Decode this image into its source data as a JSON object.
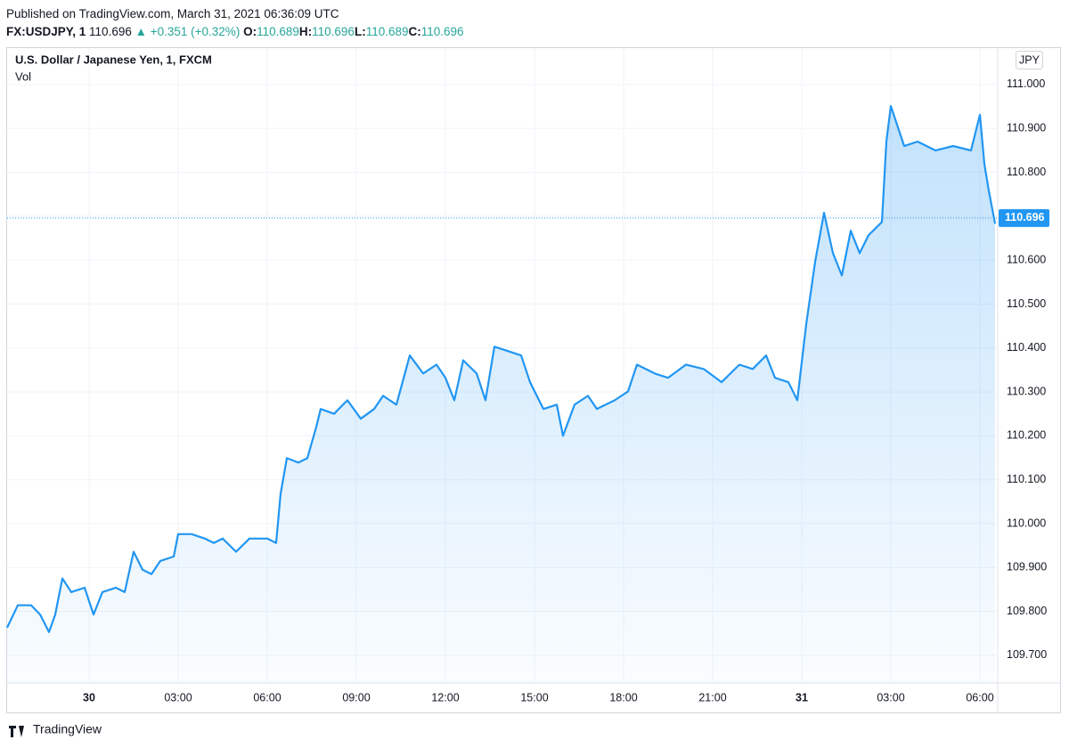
{
  "header": {
    "published": "Published on TradingView.com, March 31, 2021 06:36:09 UTC",
    "symbol": "FX:USDJPY, 1",
    "last": "110.696",
    "change": "▲ +0.351 (+0.32%)",
    "ohlc": [
      {
        "label": "O:",
        "value": "110.689"
      },
      {
        "label": "H:",
        "value": "110.696"
      },
      {
        "label": "L:",
        "value": "110.689"
      },
      {
        "label": "C:",
        "value": "110.696"
      }
    ]
  },
  "chart_data": {
    "type": "area",
    "title": "U.S. Dollar / Japanese Yen, 1, FXCM",
    "subtitle": "Vol",
    "currency": "JPY",
    "color": "#2196f3",
    "grid": true,
    "x": [
      -2.76,
      -2.4,
      -1.95,
      -1.65,
      -1.35,
      -1.14,
      -0.9,
      -0.6,
      -0.15,
      0.15,
      0.45,
      0.9,
      1.2,
      1.5,
      1.8,
      2.1,
      2.4,
      2.85,
      3.0,
      3.45,
      3.9,
      4.2,
      4.5,
      4.95,
      5.4,
      6.0,
      6.3,
      6.45,
      6.66,
      7.05,
      7.35,
      7.65,
      7.8,
      8.25,
      8.7,
      9.15,
      9.6,
      9.9,
      10.35,
      10.8,
      11.25,
      11.7,
      12.0,
      12.3,
      12.6,
      13.05,
      13.35,
      13.65,
      14.1,
      14.55,
      14.85,
      15.3,
      15.75,
      15.96,
      16.35,
      16.8,
      17.1,
      17.7,
      18.15,
      18.45,
      19.05,
      19.5,
      20.1,
      20.7,
      21.3,
      21.9,
      22.35,
      22.8,
      23.1,
      23.55,
      23.85,
      24.15,
      24.45,
      24.75,
      25.05,
      25.35,
      25.65,
      25.95,
      26.25,
      26.7,
      26.85,
      27.0,
      27.45,
      27.9,
      28.5,
      29.1,
      29.7,
      30.0,
      30.15,
      30.3,
      30.51
    ],
    "values": [
      109.763,
      109.814,
      109.814,
      109.793,
      109.753,
      109.793,
      109.875,
      109.844,
      109.854,
      109.793,
      109.844,
      109.854,
      109.844,
      109.936,
      109.895,
      109.885,
      109.915,
      109.925,
      109.976,
      109.976,
      109.966,
      109.956,
      109.966,
      109.936,
      109.966,
      109.966,
      109.956,
      110.068,
      110.149,
      110.139,
      110.149,
      110.22,
      110.261,
      110.25,
      110.281,
      110.239,
      110.261,
      110.291,
      110.271,
      110.383,
      110.342,
      110.362,
      110.332,
      110.281,
      110.372,
      110.342,
      110.281,
      110.403,
      110.393,
      110.383,
      110.322,
      110.261,
      110.271,
      110.2,
      110.271,
      110.291,
      110.261,
      110.281,
      110.301,
      110.362,
      110.342,
      110.332,
      110.362,
      110.352,
      110.322,
      110.362,
      110.352,
      110.383,
      110.332,
      110.322,
      110.281,
      110.454,
      110.596,
      110.708,
      110.616,
      110.565,
      110.667,
      110.616,
      110.657,
      110.687,
      110.87,
      110.951,
      110.86,
      110.87,
      110.85,
      110.86,
      110.85,
      110.931,
      110.819,
      110.758,
      110.683
    ],
    "last_price": {
      "value": 110.696,
      "label": "110.696"
    },
    "xlim": [
      -2.76,
      30.6
    ],
    "ylim": [
      109.637,
      111.083
    ],
    "xticks": [
      {
        "value": 0,
        "label": "30"
      },
      {
        "value": 3,
        "label": "03:00"
      },
      {
        "value": 6,
        "label": "06:00"
      },
      {
        "value": 9,
        "label": "09:00"
      },
      {
        "value": 12,
        "label": "12:00"
      },
      {
        "value": 15,
        "label": "15:00"
      },
      {
        "value": 18,
        "label": "18:00"
      },
      {
        "value": 21,
        "label": "21:00"
      },
      {
        "value": 24,
        "label": "31"
      },
      {
        "value": 27,
        "label": "03:00"
      },
      {
        "value": 30,
        "label": "06:00"
      }
    ],
    "yticks": [
      {
        "value": 109.7,
        "label": "109.700"
      },
      {
        "value": 109.8,
        "label": "109.800"
      },
      {
        "value": 109.9,
        "label": "109.900"
      },
      {
        "value": 110.0,
        "label": "110.000"
      },
      {
        "value": 110.1,
        "label": "110.100"
      },
      {
        "value": 110.2,
        "label": "110.200"
      },
      {
        "value": 110.3,
        "label": "110.300"
      },
      {
        "value": 110.4,
        "label": "110.400"
      },
      {
        "value": 110.5,
        "label": "110.500"
      },
      {
        "value": 110.6,
        "label": "110.600"
      },
      {
        "value": 110.7,
        "label": "110.700"
      },
      {
        "value": 110.8,
        "label": "110.800"
      },
      {
        "value": 110.9,
        "label": "110.900"
      },
      {
        "value": 111.0,
        "label": "111.000"
      }
    ]
  },
  "footer": "TradingView"
}
